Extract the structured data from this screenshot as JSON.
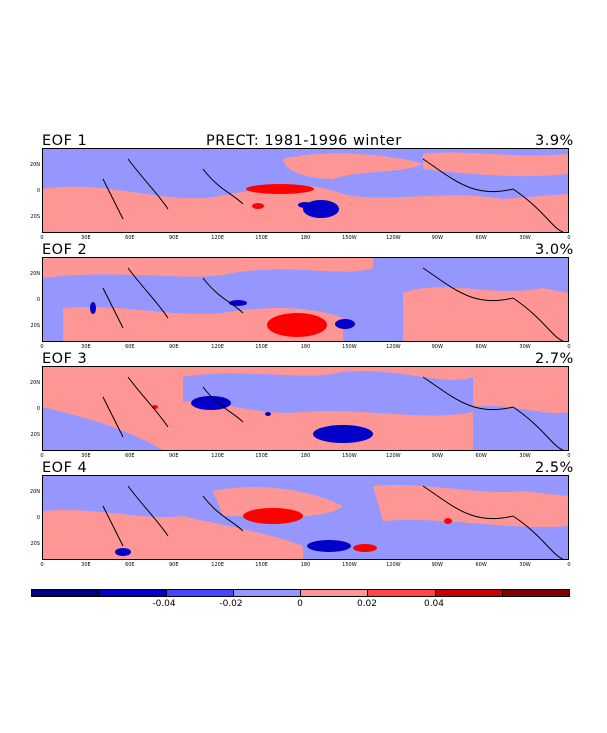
{
  "title": "PRECT: 1981-1996 winter",
  "panels": [
    {
      "label": "EOF 1",
      "variance": "3.9%"
    },
    {
      "label": "EOF 2",
      "variance": "3.0%"
    },
    {
      "label": "EOF 3",
      "variance": "2.7%"
    },
    {
      "label": "EOF 4",
      "variance": "2.5%"
    }
  ],
  "lat_labels": [
    "20N",
    "0",
    "20S"
  ],
  "lon_labels": [
    "0",
    "30E",
    "60E",
    "90E",
    "120E",
    "150E",
    "180",
    "150W",
    "120W",
    "90W",
    "60W",
    "30W",
    "0"
  ],
  "colorbar": {
    "colors": [
      "#000080",
      "#0000c8",
      "#4646ff",
      "#9696ff",
      "#ff9696",
      "#ff4646",
      "#c80000",
      "#800000"
    ],
    "labels": [
      "-0.04",
      "-0.02",
      "0",
      "0.02",
      "0.04"
    ]
  },
  "colors": {
    "negative_weak": "#9696ff",
    "positive_weak": "#ff9696",
    "negative_strong": "#0000c8",
    "positive_strong": "#ff0000"
  }
}
